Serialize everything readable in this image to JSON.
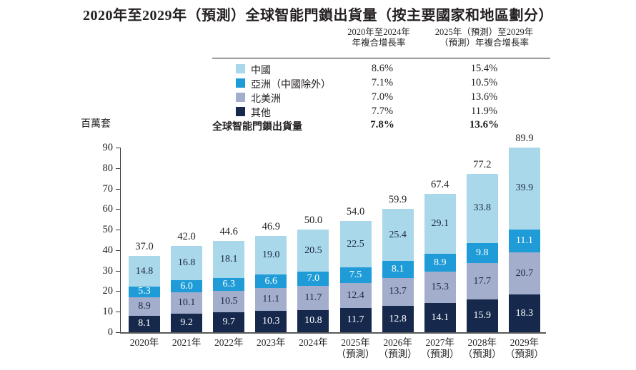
{
  "title": "2020年至2029年（預測）全球智能門鎖出貨量（按主要國家和地區劃分）",
  "cagr_table": {
    "col1_header_line1": "2020年至2024年",
    "col1_header_line2": "年複合增長率",
    "col2_header_line1": "2025年（預測）至2029年",
    "col2_header_line2": "（預測）年複合增長率",
    "rows": [
      {
        "label": "中國",
        "swatch": "#a9d8ea",
        "cagr_2020_2024": "8.6%",
        "cagr_2025_2029": "15.4%"
      },
      {
        "label": "亞洲（中國除外）",
        "swatch": "#1f9cd8",
        "cagr_2020_2024": "7.1%",
        "cagr_2025_2029": "10.5%"
      },
      {
        "label": "北美洲",
        "swatch": "#a3aecd",
        "cagr_2020_2024": "7.0%",
        "cagr_2025_2029": "13.6%"
      },
      {
        "label": "其他",
        "swatch": "#16294c",
        "cagr_2020_2024": "7.7%",
        "cagr_2025_2029": "11.9%"
      }
    ],
    "total_row": {
      "label": "全球智能門鎖出貨量",
      "cagr_2020_2024": "7.8%",
      "cagr_2025_2029": "13.6%"
    }
  },
  "chart_data": {
    "type": "bar",
    "stacked": true,
    "title": "2020年至2029年（預測）全球智能門鎖出貨量（按主要國家和地區劃分）",
    "ylabel": "百萬套",
    "ylim": [
      0,
      90
    ],
    "ytick_step": 10,
    "yticks": [
      0,
      10,
      20,
      30,
      40,
      50,
      60,
      70,
      80,
      90
    ],
    "grid": false,
    "legend_position": "top-table",
    "categories": [
      {
        "line1": "2020年",
        "line2": ""
      },
      {
        "line1": "2021年",
        "line2": ""
      },
      {
        "line1": "2022年",
        "line2": ""
      },
      {
        "line1": "2023年",
        "line2": ""
      },
      {
        "line1": "2024年",
        "line2": ""
      },
      {
        "line1": "2025年",
        "line2": "（預測）"
      },
      {
        "line1": "2026年",
        "line2": "（預測）"
      },
      {
        "line1": "2027年",
        "line2": "（預測）"
      },
      {
        "line1": "2028年",
        "line2": "（預測）"
      },
      {
        "line1": "2029年",
        "line2": "（預測）"
      }
    ],
    "series": [
      {
        "name": "其他",
        "color": "#16294c",
        "label_color": "#ffffff",
        "values": [
          8.1,
          9.2,
          9.7,
          10.3,
          10.8,
          11.7,
          12.8,
          14.1,
          15.9,
          18.3
        ]
      },
      {
        "name": "北美洲",
        "color": "#a3aecd",
        "label_color": "#1c2742",
        "values": [
          8.9,
          10.1,
          10.5,
          11.1,
          11.7,
          12.4,
          13.7,
          15.3,
          17.7,
          20.7
        ]
      },
      {
        "name": "亞洲（中國除外）",
        "color": "#1f9cd8",
        "label_color": "#ffffff",
        "values": [
          5.3,
          6.0,
          6.3,
          6.6,
          7.0,
          7.5,
          8.1,
          8.9,
          9.8,
          11.1
        ]
      },
      {
        "name": "中國",
        "color": "#a9d8ea",
        "label_color": "#1c2742",
        "values": [
          14.8,
          16.8,
          18.1,
          19.0,
          20.5,
          22.5,
          25.4,
          29.1,
          33.8,
          39.9
        ]
      }
    ],
    "totals": [
      37.0,
      42.0,
      44.6,
      46.9,
      50.0,
      54.0,
      59.9,
      67.4,
      77.2,
      89.9
    ]
  }
}
